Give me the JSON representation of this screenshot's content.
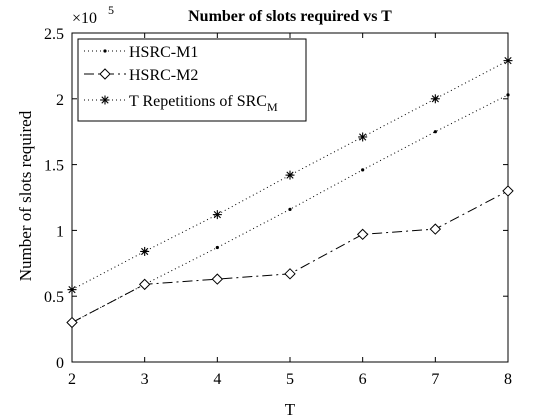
{
  "chart_data": {
    "type": "line",
    "title": "Number of slots required vs T",
    "xlabel": "T",
    "ylabel": "Number of slots required",
    "x": [
      2,
      3,
      4,
      5,
      6,
      7,
      8
    ],
    "xlim": [
      2,
      8
    ],
    "ylim": [
      0,
      250000
    ],
    "y_exponent_label": "×10",
    "y_exponent_power": "5",
    "xticks": [
      "2",
      "3",
      "4",
      "5",
      "6",
      "7",
      "8"
    ],
    "yticks": [
      "0",
      "0.5",
      "1",
      "1.5",
      "2",
      "2.5"
    ],
    "ytick_values": [
      0,
      50000,
      100000,
      150000,
      200000,
      250000
    ],
    "grid": false,
    "legend_position": "top-left",
    "series": [
      {
        "name": "HSRC-M1",
        "name_subscript": "",
        "line_style": "dotted",
        "marker": "dot",
        "values": [
          30000,
          59000,
          87000,
          116000,
          146000,
          175000,
          203000
        ]
      },
      {
        "name": "HSRC-M2",
        "name_subscript": "",
        "line_style": "dashdot",
        "marker": "diamond",
        "values": [
          30000,
          59000,
          63000,
          67000,
          97000,
          101000,
          130000
        ]
      },
      {
        "name": "T Repetitions of SRC",
        "name_subscript": "M",
        "line_style": "dotted",
        "marker": "asterisk",
        "values": [
          55000,
          84000,
          112000,
          142000,
          171000,
          200000,
          229000
        ]
      }
    ]
  }
}
